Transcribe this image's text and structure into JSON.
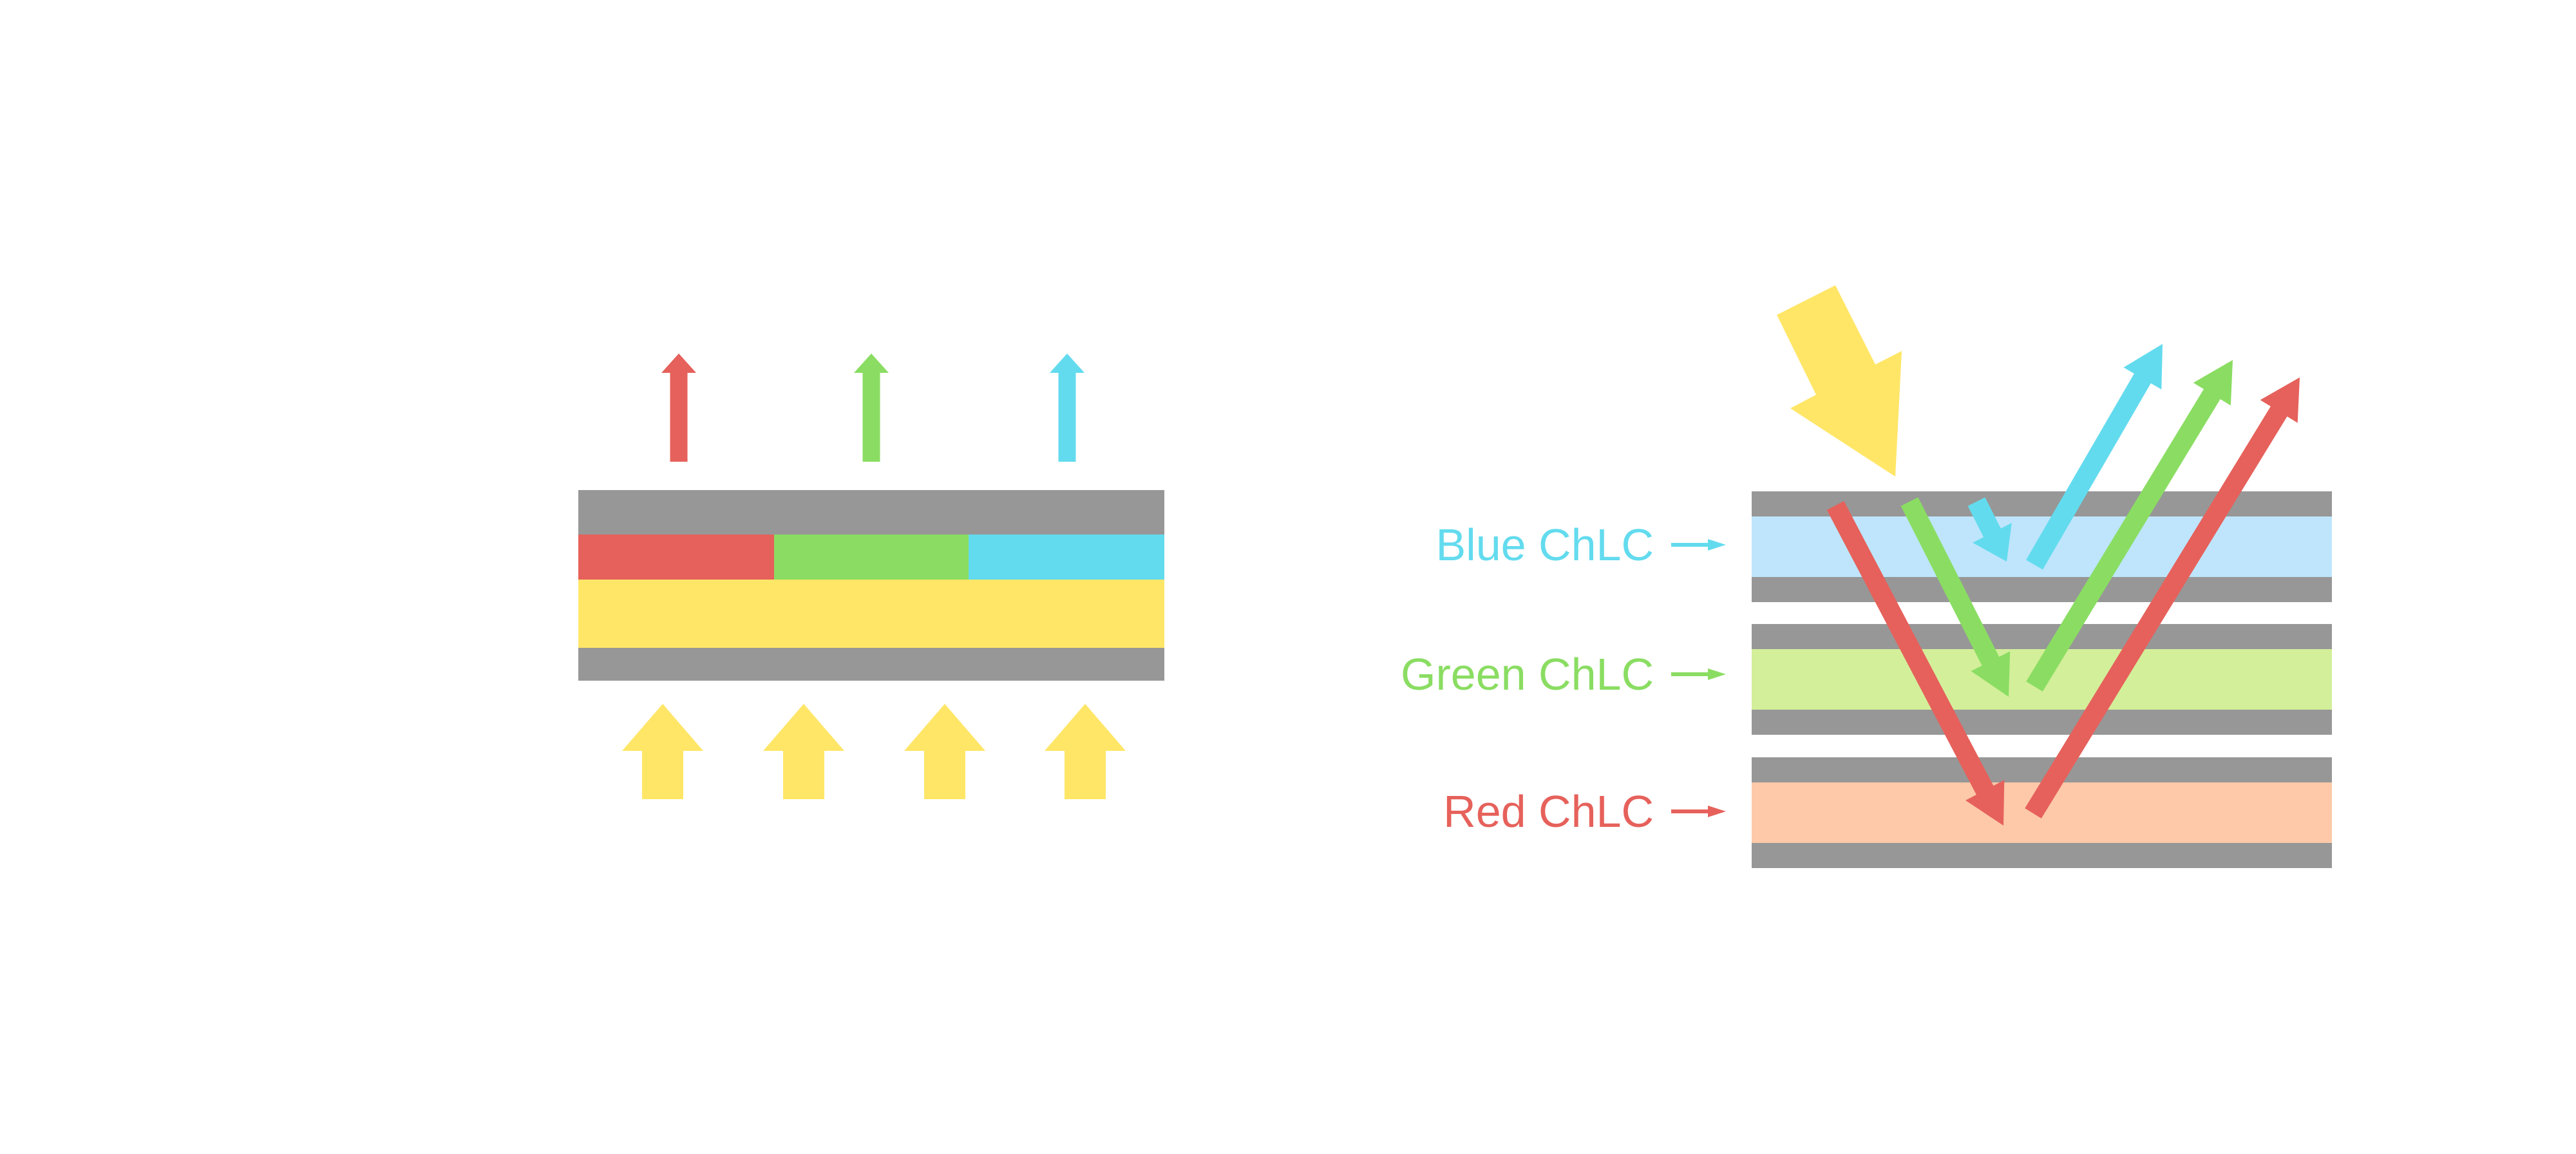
{
  "colors": {
    "red": "#E6615B",
    "green": "#8ADD62",
    "blue": "#63DBEE",
    "yellow": "#FFE667",
    "gray": "#979797",
    "blue_layer": "#BEE5FC",
    "green_layer": "#D3EF9A",
    "red_layer": "#FDC9A9"
  },
  "right_diagram": {
    "layers": [
      {
        "label": "Blue ChLC",
        "color_key": "blue",
        "fill_key": "blue_layer"
      },
      {
        "label": "Green ChLC",
        "color_key": "green",
        "fill_key": "green_layer"
      },
      {
        "label": "Red ChLC",
        "color_key": "red",
        "fill_key": "red_layer"
      }
    ]
  }
}
